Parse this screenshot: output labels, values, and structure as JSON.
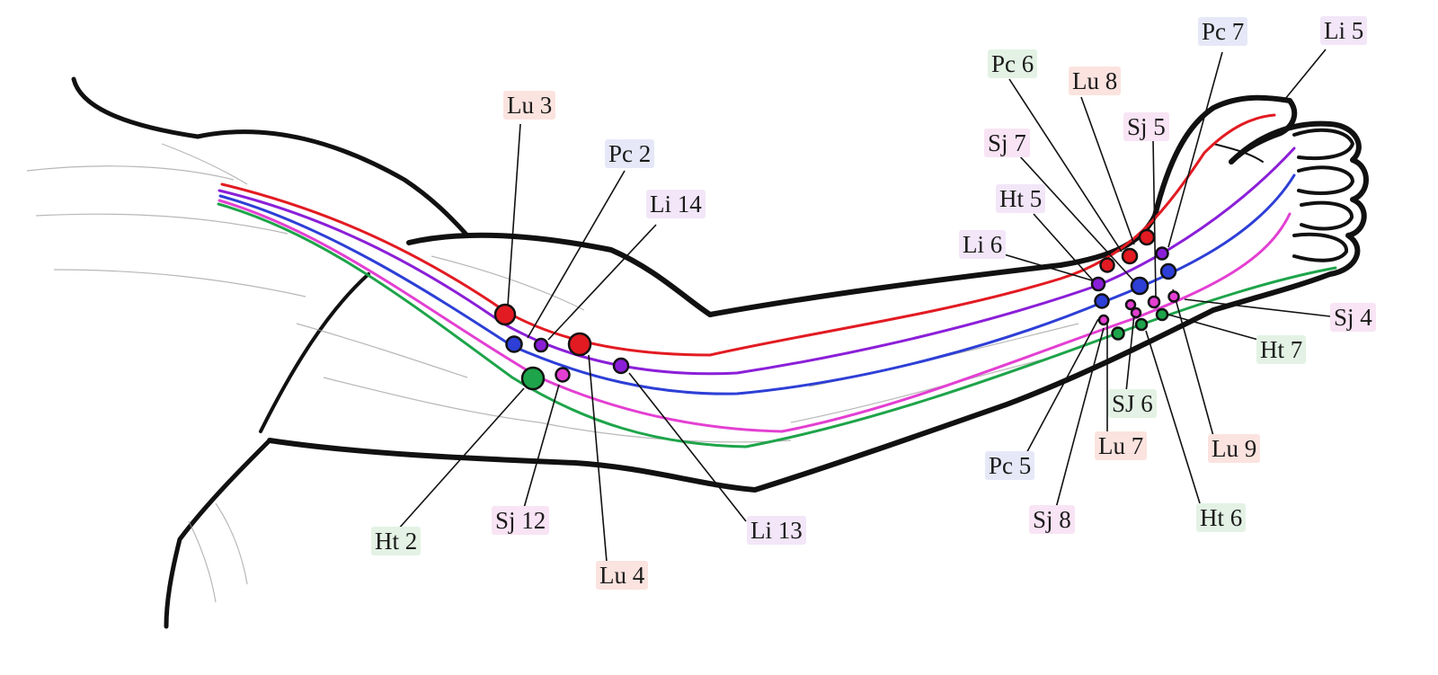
{
  "colors": {
    "lung": "#e21b22",
    "large_intestine": "#8b1fd8",
    "pericardium": "#2d3fd6",
    "san_jiao": "#e33fd2",
    "heart": "#1ea44a",
    "outline": "#111111"
  },
  "labels": {
    "lu3": "Lu 3",
    "pc2": "Pc 2",
    "li14": "Li 14",
    "ht2": "Ht 2",
    "sj12": "Sj 12",
    "lu4": "Lu 4",
    "li13": "Li 13",
    "pc6": "Pc 6",
    "lu8": "Lu 8",
    "pc7": "Pc 7",
    "li5": "Li 5",
    "sj5": "Sj 5",
    "sj7": "Sj 7",
    "ht5": "Ht 5",
    "li6": "Li 6",
    "sj4": "Sj 4",
    "ht7": "Ht 7",
    "sj6": "SJ 6",
    "lu9": "Lu 9",
    "pc5": "Pc 5",
    "lu7": "Lu 7",
    "sj8": "Sj 8",
    "ht6": "Ht 6"
  }
}
